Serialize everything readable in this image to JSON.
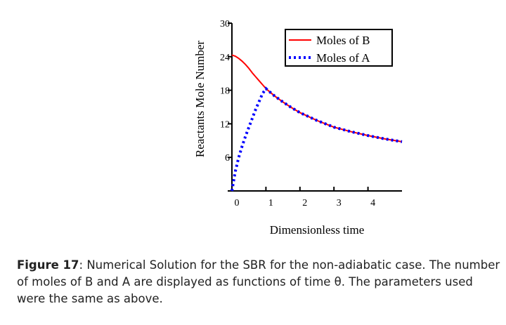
{
  "chart_data": {
    "type": "line",
    "title": "",
    "xlabel": "Dimensionless time",
    "ylabel": "Reactants Mole Number",
    "xlim": [
      0,
      5
    ],
    "ylim": [
      0,
      30
    ],
    "xticks": [
      "0",
      "1",
      "2",
      "3",
      "4"
    ],
    "yticks": [
      "6",
      "12",
      "18",
      "24",
      "30"
    ],
    "legend_position": "top-right",
    "series": [
      {
        "name": "Moles of B",
        "color": "#ff0000",
        "style": "solid",
        "x": [
          0,
          0.1,
          0.2,
          0.3,
          0.4,
          0.5,
          0.6,
          0.7,
          0.8,
          0.9,
          1.0,
          1.25,
          1.5,
          1.75,
          2,
          2.5,
          3,
          3.5,
          4,
          4.5,
          5
        ],
        "y": [
          24.3,
          24.1,
          23.7,
          23.2,
          22.6,
          21.9,
          21.1,
          20.4,
          19.7,
          19.0,
          18.3,
          17.0,
          15.9,
          14.9,
          14.0,
          12.6,
          11.4,
          10.6,
          9.9,
          9.3,
          8.8
        ]
      },
      {
        "name": "Moles of A",
        "color": "#0000ff",
        "style": "dotted",
        "x": [
          0,
          0.1,
          0.2,
          0.3,
          0.4,
          0.5,
          0.6,
          0.7,
          0.8,
          0.9,
          1.0,
          1.25,
          1.5,
          1.75,
          2,
          2.5,
          3,
          3.5,
          4,
          4.5,
          5
        ],
        "y": [
          0,
          3.5,
          6.0,
          8.0,
          9.8,
          11.4,
          13.0,
          14.6,
          16.0,
          17.4,
          18.3,
          17.0,
          15.9,
          14.9,
          14.0,
          12.6,
          11.4,
          10.6,
          9.9,
          9.3,
          8.8
        ]
      }
    ]
  },
  "caption": {
    "label": "Figure 17",
    "text": ": Numerical Solution for the SBR for the non-adiabatic case. The number of moles of B and A are displayed as functions of time θ. The parameters used were the same as above."
  }
}
